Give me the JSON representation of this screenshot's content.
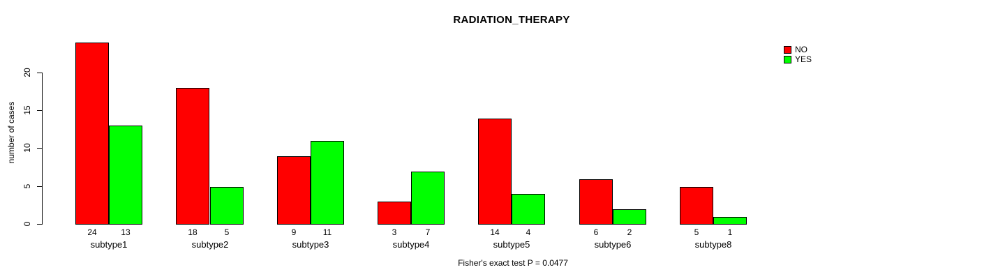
{
  "chart_data": {
    "type": "bar",
    "title": "RADIATION_THERAPY",
    "ylabel": "number of cases",
    "xlabel": "",
    "footnote": "Fisher's exact test P = 0.0477",
    "categories": [
      "subtype1",
      "subtype2",
      "subtype3",
      "subtype4",
      "subtype5",
      "subtype6",
      "subtype8"
    ],
    "series": [
      {
        "name": "NO",
        "color": "#ff0000",
        "values": [
          24,
          18,
          9,
          3,
          14,
          6,
          5
        ]
      },
      {
        "name": "YES",
        "color": "#00ff00",
        "values": [
          13,
          5,
          11,
          7,
          4,
          2,
          1
        ]
      }
    ],
    "yticks": [
      0,
      5,
      10,
      15,
      20
    ],
    "ylim": [
      0,
      24
    ],
    "grid": false,
    "legend_position": "top-right",
    "bar_border_color": "#000000",
    "background_color": "#ffffff"
  }
}
